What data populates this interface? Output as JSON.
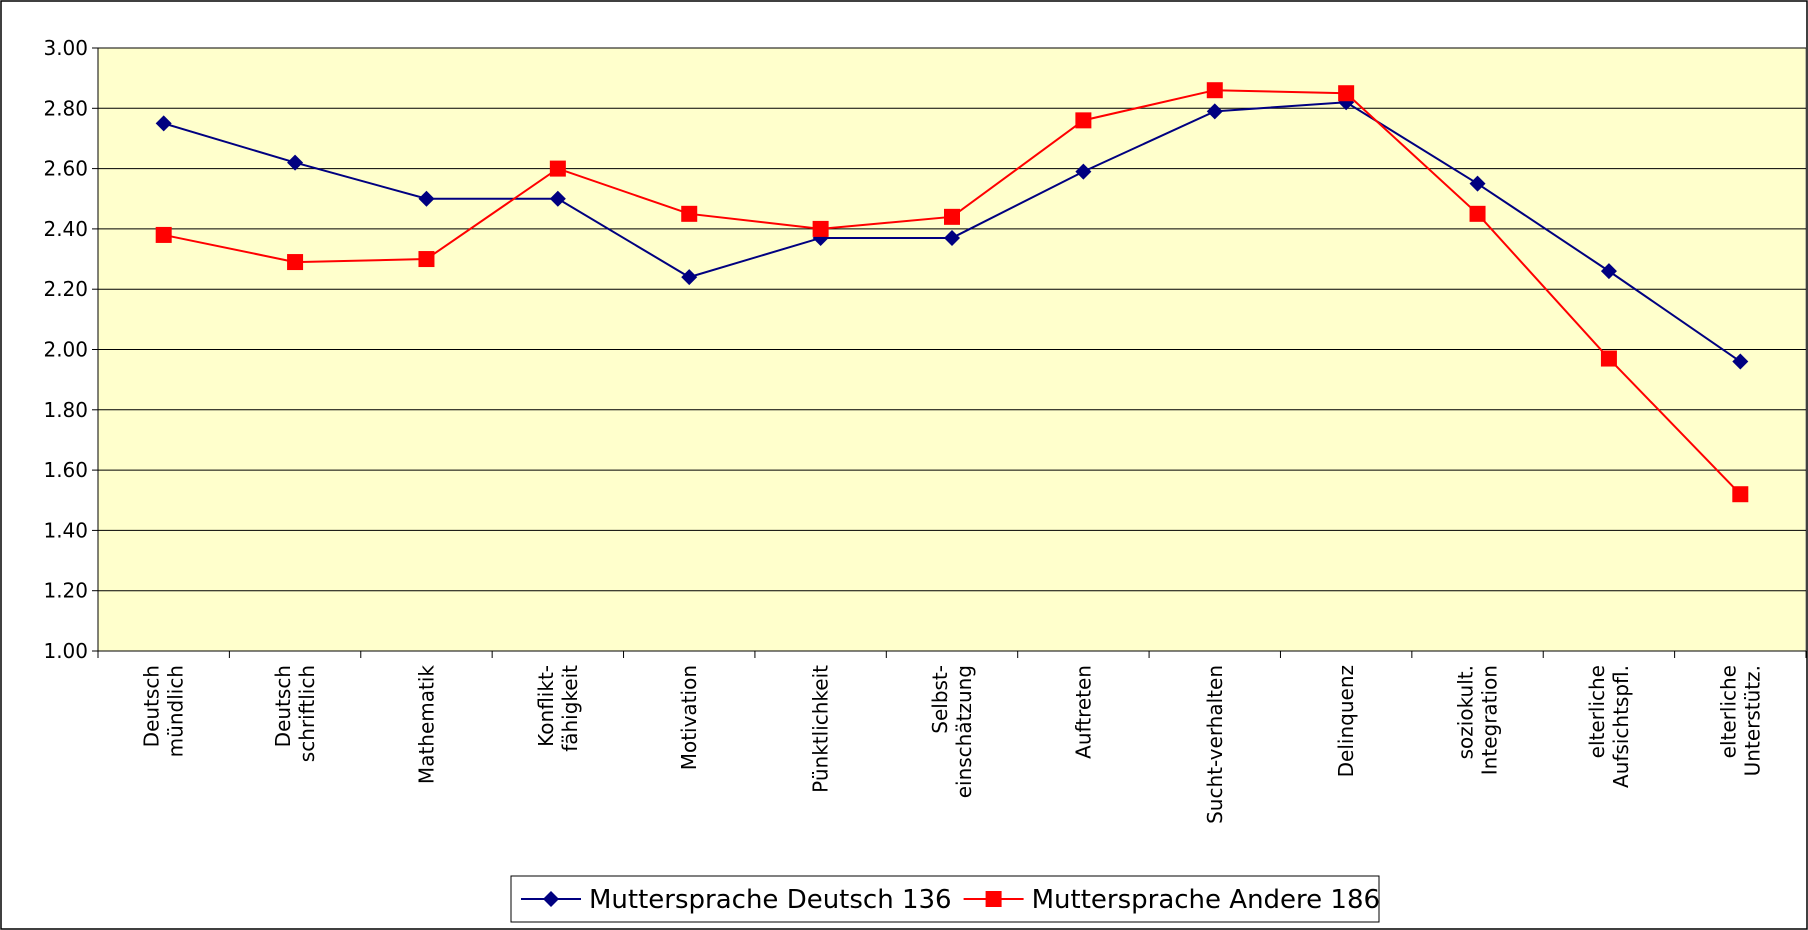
{
  "chart_data": {
    "type": "line",
    "categories": [
      [
        "Deutsch",
        "mündlich"
      ],
      [
        "Deutsch",
        "schriftlich"
      ],
      [
        "Mathematik"
      ],
      [
        "Konflikt-",
        "fähigkeit"
      ],
      [
        "Motivation"
      ],
      [
        "Pünktlichkeit"
      ],
      [
        "Selbst-",
        "einschätzung"
      ],
      [
        "Auftreten"
      ],
      [
        "Sucht-verhalten"
      ],
      [
        "Delinquenz"
      ],
      [
        "soziokult.",
        "Integration"
      ],
      [
        "elterliche",
        "Aufsichtspfl."
      ],
      [
        "elterliche",
        "Unterstütz."
      ]
    ],
    "series": [
      {
        "name": "Muttersprache Deutsch 136",
        "color": "#000080",
        "marker": "diamond",
        "values": [
          2.75,
          2.62,
          2.5,
          2.5,
          2.24,
          2.37,
          2.37,
          2.59,
          2.79,
          2.82,
          2.55,
          2.26,
          1.96
        ]
      },
      {
        "name": "Muttersprache Andere 186",
        "color": "#ff0000",
        "marker": "square",
        "values": [
          2.38,
          2.29,
          2.3,
          2.6,
          2.45,
          2.4,
          2.44,
          2.76,
          2.86,
          2.85,
          2.45,
          1.97,
          1.52
        ]
      }
    ],
    "ylim": [
      1.0,
      3.0
    ],
    "yticks": [
      {
        "value": 1.0,
        "label": "1.00"
      },
      {
        "value": 1.2,
        "label": "1.20"
      },
      {
        "value": 1.4,
        "label": "1.40"
      },
      {
        "value": 1.6,
        "label": "1.60"
      },
      {
        "value": 1.8,
        "label": "1.80"
      },
      {
        "value": 2.0,
        "label": "2.00"
      },
      {
        "value": 2.2,
        "label": "2.20"
      },
      {
        "value": 2.4,
        "label": "2.40"
      },
      {
        "value": 2.6,
        "label": "2.60"
      },
      {
        "value": 2.8,
        "label": "2.80"
      },
      {
        "value": 3.0,
        "label": "3.00"
      }
    ],
    "grid": true,
    "legend": "bottom",
    "plot_background": "#ffffcc"
  }
}
